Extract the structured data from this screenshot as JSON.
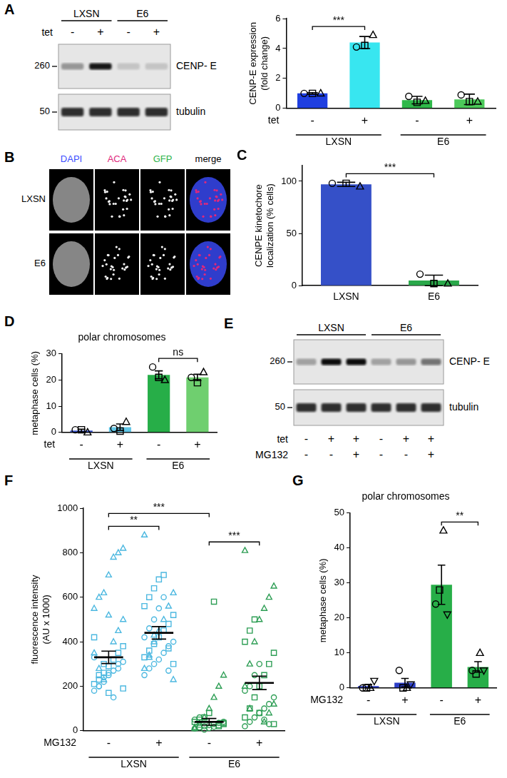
{
  "chart_data": [
    {
      "type": "bar",
      "y_label": [
        "CENP-E expression",
        "(fold change)"
      ],
      "categories": [
        "-",
        "+",
        "-",
        "+"
      ],
      "row_label": "tet",
      "groups": [
        {
          "label": "LXSN",
          "from": 0,
          "to": 1
        },
        {
          "label": "E6",
          "from": 2,
          "to": 3
        }
      ],
      "values": [
        1,
        4.4,
        0.55,
        0.6
      ],
      "errors": [
        0.05,
        0.4,
        0.25,
        0.35
      ],
      "colors": [
        "#1f3fe0",
        "#38e6f0",
        "#2fb84a",
        "#4cc95a"
      ],
      "points": [
        {
          "marker": "circle",
          "values": [
            [
              1
            ],
            [
              4.1
            ],
            [
              0.8
            ],
            [
              0.9
            ]
          ]
        },
        {
          "marker": "square",
          "values": [
            [
              1
            ],
            [
              4.2
            ],
            [
              0.4
            ],
            [
              0.45
            ]
          ]
        },
        {
          "marker": "triangle",
          "values": [
            [
              1
            ],
            [
              4.9
            ],
            [
              0.5
            ],
            [
              0.45
            ]
          ]
        }
      ],
      "significance": [
        {
          "from": 0,
          "to": 1,
          "label": "***"
        }
      ],
      "ylim": [
        0,
        6
      ],
      "yticks": [
        0,
        2,
        4,
        6
      ]
    },
    {
      "panel": "C",
      "type": "bar",
      "y_label": [
        "CENPE kinetochore",
        "localization (% cells)"
      ],
      "categories": [
        "LXSN",
        "E6"
      ],
      "values": [
        97,
        5
      ],
      "errors": [
        2,
        5
      ],
      "colors": [
        "#3550c8",
        "#2aa84a"
      ],
      "points": [
        {
          "marker": "circle",
          "values": [
            [
              98
            ],
            [
              11
            ]
          ]
        },
        {
          "marker": "square",
          "values": [
            [
              98
            ],
            [
              2
            ]
          ]
        },
        {
          "marker": "triangle",
          "values": [
            [
              95
            ],
            [
              2
            ]
          ]
        }
      ],
      "significance": [
        {
          "from": 0,
          "to": 1,
          "label": "***"
        }
      ],
      "ylim": [
        0,
        115
      ],
      "yticks": [
        0,
        50,
        100
      ]
    },
    {
      "panel": "D",
      "type": "bar",
      "title": "polar chromosomes",
      "y_label": "metaphase cells (%)",
      "categories": [
        "-",
        "+",
        "-",
        "+"
      ],
      "row_label": "tet",
      "groups": [
        {
          "label": "LXSN",
          "from": 0,
          "to": 1
        },
        {
          "label": "E6",
          "from": 2,
          "to": 3
        }
      ],
      "values": [
        0.7,
        2,
        22,
        21
      ],
      "errors": [
        0.5,
        1.2,
        1.5,
        1.2
      ],
      "colors": [
        "#3550c8",
        "#62c6e6",
        "#27ae48",
        "#6fcf6f"
      ],
      "points": [
        {
          "marker": "circle",
          "values": [
            [
              1
            ],
            [
              1.5
            ],
            [
              25
            ],
            [
              21
            ]
          ]
        },
        {
          "marker": "square",
          "values": [
            [
              1
            ],
            [
              0.5
            ],
            [
              21
            ],
            [
              19
            ]
          ]
        },
        {
          "marker": "triangle",
          "values": [
            [
              0
            ],
            [
              4
            ],
            [
              20
            ],
            [
              23
            ]
          ]
        }
      ],
      "significance": [
        {
          "from": 2,
          "to": 3,
          "label": "ns"
        }
      ],
      "ylim": [
        0,
        30
      ],
      "yticks": [
        0,
        10,
        20,
        30
      ]
    },
    {
      "panel": "F",
      "type": "dot",
      "y_label": [
        "fluorescence intensity",
        "(AU x 1000)"
      ],
      "categories": [
        "-",
        "+",
        "-",
        "+"
      ],
      "row_label": "MG132",
      "groups": [
        {
          "label": "LXSN",
          "from": 0,
          "to": 1
        },
        {
          "label": "E6",
          "from": 2,
          "to": 3
        }
      ],
      "values": [
        330,
        440,
        40,
        215
      ],
      "errors": [
        28,
        28,
        15,
        30
      ],
      "colors": [
        "#4cb8e0",
        "#4cb8e0",
        "#2e9e55",
        "#2e9e55"
      ],
      "points": [
        {
          "marker": "circle",
          "values": [
            [
              180,
              200,
              220,
              250,
              270,
              300,
              310,
              330,
              200,
              240,
              260,
              150,
              280
            ],
            [
              250,
              280,
              300,
              320,
              350,
              380,
              400,
              420,
              460,
              500,
              550,
              600,
              270
            ],
            [
              10,
              15,
              20,
              25,
              30,
              35,
              40,
              50,
              60,
              5,
              12,
              18
            ],
            [
              20,
              40,
              60,
              80,
              100,
              120,
              150,
              180,
              200,
              250,
              300,
              50,
              30
            ]
          ]
        },
        {
          "marker": "square",
          "values": [
            [
              190,
              210,
              230,
              260,
              290,
              320,
              350,
              380,
              420,
              250,
              300,
              170
            ],
            [
              300,
              330,
              360,
              390,
              420,
              450,
              480,
              520,
              560,
              600,
              640,
              680,
              700,
              370
            ],
            [
              20,
              30,
              40,
              50,
              60,
              80,
              580,
              25,
              35
            ],
            [
              30,
              60,
              100,
              150,
              200,
              250,
              300,
              350,
              400,
              450,
              500,
              80
            ]
          ]
        },
        {
          "marker": "triangle",
          "values": [
            [
              400,
              450,
              500,
              550,
              600,
              620,
              700,
              780,
              800,
              820,
              350,
              280,
              230,
              520
            ],
            [
              230,
              280,
              340,
              400,
              450,
              500,
              560,
              620,
              880,
              330,
              430
            ],
            [
              15,
              25,
              60,
              100,
              150,
              200,
              250,
              10,
              35
            ],
            [
              40,
              80,
              120,
              200,
              300,
              400,
              500,
              550,
              600,
              650,
              810,
              100
            ]
          ]
        }
      ],
      "significance": [
        {
          "from": 0,
          "to": 1,
          "label": "**"
        },
        {
          "from": 0,
          "to": 2,
          "label": "***"
        },
        {
          "from": 2,
          "to": 3,
          "label": "***"
        }
      ],
      "ylim": [
        0,
        1000
      ],
      "yticks": [
        0,
        200,
        400,
        600,
        800,
        1000
      ]
    },
    {
      "panel": "G",
      "type": "bar",
      "title": "polar chromosomes",
      "y_label": "metaphase cells (%)",
      "categories": [
        "-",
        "+",
        "-",
        "+"
      ],
      "row_label": "MG132",
      "groups": [
        {
          "label": "LXSN",
          "from": 0,
          "to": 1
        },
        {
          "label": "E6",
          "from": 2,
          "to": 3
        }
      ],
      "values": [
        0.5,
        1.5,
        29.5,
        6
      ],
      "errors": [
        0.5,
        1.2,
        5.6,
        1.5
      ],
      "colors": [
        "#2c3ec6",
        "#2c3ec6",
        "#27ae48",
        "#27ae48"
      ],
      "points": [
        {
          "marker": "circle",
          "values": [
            [
              0
            ],
            [
              5
            ],
            [
              24
            ],
            [
              5
            ]
          ]
        },
        {
          "marker": "square",
          "values": [
            [
              0
            ],
            [
              0
            ],
            [
              28
            ],
            [
              4
            ]
          ]
        },
        {
          "marker": "triangle",
          "values": [
            [
              0
            ],
            [
              0
            ],
            [
              45
            ],
            [
              10
            ]
          ]
        },
        {
          "marker": "triangle_down",
          "values": [
            [
              2
            ],
            [
              1
            ],
            [
              21
            ],
            [
              5
            ]
          ]
        }
      ],
      "significance": [
        {
          "from": 2,
          "to": 3,
          "label": "**"
        }
      ],
      "ylim": [
        0,
        50
      ],
      "yticks": [
        0,
        10,
        20,
        30,
        40,
        50
      ]
    }
  ],
  "blots": [
    {
      "panel": "A",
      "groups": [
        "LXSN",
        "E6"
      ],
      "rows": [
        {
          "label": "tet",
          "signs": [
            "-",
            "+",
            "-",
            "+"
          ]
        }
      ],
      "bands": [
        {
          "label": "CENP- E",
          "marker": 260
        },
        {
          "label": "tubulin",
          "marker": 50
        }
      ]
    },
    {
      "panel": "E",
      "groups": [
        "LXSN",
        "E6"
      ],
      "rows": [
        {
          "label": "tet",
          "signs": [
            "-",
            "+",
            "+",
            "-",
            "+",
            "+"
          ]
        },
        {
          "label": "MG132",
          "signs": [
            "-",
            "-",
            "+",
            "-",
            "-",
            "+"
          ]
        }
      ],
      "bands": [
        {
          "label": "CENP- E",
          "marker": 260
        },
        {
          "label": "tubulin",
          "marker": 50
        }
      ]
    }
  ],
  "micrographs": {
    "panel": "B",
    "columns": [
      {
        "label": "DAPI",
        "color": "#3b4cff"
      },
      {
        "label": "ACA",
        "color": "#e0287c"
      },
      {
        "label": "GFP",
        "color": "#2db34a"
      },
      {
        "label": "merge",
        "color": "#000000"
      }
    ],
    "rows": [
      "LXSN",
      "E6"
    ]
  }
}
